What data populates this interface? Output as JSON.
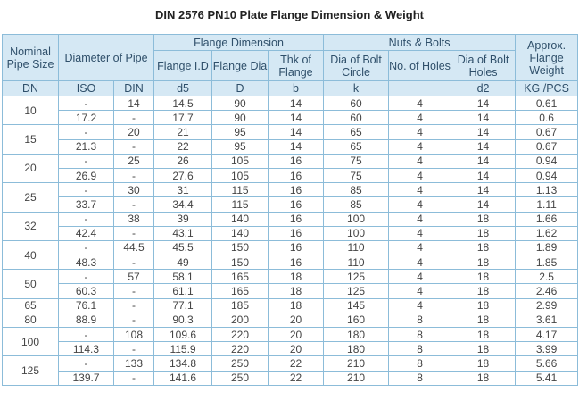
{
  "title": "DIN 2576 PN10 Plate Flange Dimension & Weight",
  "table": {
    "header_top": [
      "Nominal Pipe Size",
      "Diameter of Pipe",
      "Flange Dimension",
      "Nuts & Bolts",
      "Approx. Flange Weight"
    ],
    "header_sub": [
      "Flange I.D",
      "Flange Dia",
      "Thk of Flange",
      "Dia of Bolt Circle",
      "No. of Holes",
      "Dia of Bolt Holes"
    ],
    "units": [
      "DN",
      "ISO",
      "DIN",
      "d5",
      "D",
      "b",
      "k",
      null,
      "d2",
      "KG /PCS"
    ],
    "groups": [
      {
        "dn": "10",
        "rows": [
          [
            "-",
            "14",
            "14.5",
            "90",
            "14",
            "60",
            "4",
            "14",
            "0.61"
          ],
          [
            "17.2",
            "-",
            "17.7",
            "90",
            "14",
            "60",
            "4",
            "14",
            "0.6"
          ]
        ]
      },
      {
        "dn": "15",
        "rows": [
          [
            "-",
            "20",
            "21",
            "95",
            "14",
            "65",
            "4",
            "14",
            "0.67"
          ],
          [
            "21.3",
            "-",
            "22",
            "95",
            "14",
            "65",
            "4",
            "14",
            "0.67"
          ]
        ]
      },
      {
        "dn": "20",
        "rows": [
          [
            "-",
            "25",
            "26",
            "105",
            "16",
            "75",
            "4",
            "14",
            "0.94"
          ],
          [
            "26.9",
            "-",
            "27.6",
            "105",
            "16",
            "75",
            "4",
            "14",
            "0.94"
          ]
        ]
      },
      {
        "dn": "25",
        "rows": [
          [
            "-",
            "30",
            "31",
            "115",
            "16",
            "85",
            "4",
            "14",
            "1.13"
          ],
          [
            "33.7",
            "-",
            "34.4",
            "115",
            "16",
            "85",
            "4",
            "14",
            "1.11"
          ]
        ]
      },
      {
        "dn": "32",
        "rows": [
          [
            "-",
            "38",
            "39",
            "140",
            "16",
            "100",
            "4",
            "18",
            "1.66"
          ],
          [
            "42.4",
            "-",
            "43.1",
            "140",
            "16",
            "100",
            "4",
            "18",
            "1.62"
          ]
        ]
      },
      {
        "dn": "40",
        "rows": [
          [
            "-",
            "44.5",
            "45.5",
            "150",
            "16",
            "110",
            "4",
            "18",
            "1.89"
          ],
          [
            "48.3",
            "-",
            "49",
            "150",
            "16",
            "110",
            "4",
            "18",
            "1.85"
          ]
        ]
      },
      {
        "dn": "50",
        "rows": [
          [
            "-",
            "57",
            "58.1",
            "165",
            "18",
            "125",
            "4",
            "18",
            "2.5"
          ],
          [
            "60.3",
            "-",
            "61.1",
            "165",
            "18",
            "125",
            "4",
            "18",
            "2.46"
          ]
        ]
      },
      {
        "dn": "65",
        "rows": [
          [
            "76.1",
            "-",
            "77.1",
            "185",
            "18",
            "145",
            "4",
            "18",
            "2.99"
          ]
        ]
      },
      {
        "dn": "80",
        "rows": [
          [
            "88.9",
            "-",
            "90.3",
            "200",
            "20",
            "160",
            "8",
            "18",
            "3.61"
          ]
        ]
      },
      {
        "dn": "100",
        "rows": [
          [
            "-",
            "108",
            "109.6",
            "220",
            "20",
            "180",
            "8",
            "18",
            "4.17"
          ],
          [
            "114.3",
            "-",
            "115.9",
            "220",
            "20",
            "180",
            "8",
            "18",
            "3.99"
          ]
        ]
      },
      {
        "dn": "125",
        "rows": [
          [
            "-",
            "133",
            "134.8",
            "250",
            "22",
            "210",
            "8",
            "18",
            "5.66"
          ],
          [
            "139.7",
            "-",
            "141.6",
            "250",
            "22",
            "210",
            "8",
            "18",
            "5.41"
          ]
        ]
      }
    ]
  }
}
